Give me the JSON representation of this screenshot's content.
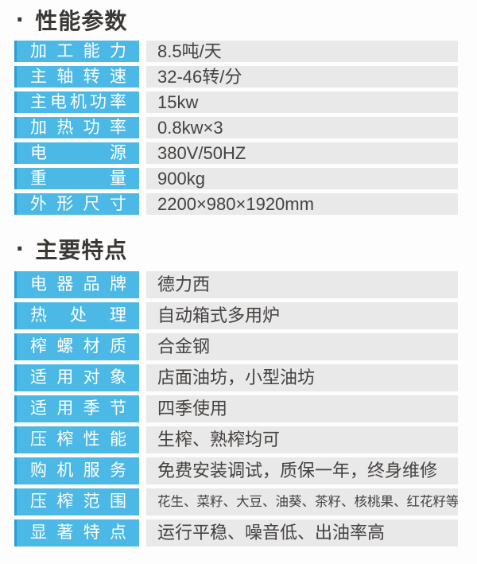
{
  "colors": {
    "accent": "#4cb8e6",
    "accent_dark": "#2aa0d4",
    "value_bg": "#e9e9e9",
    "label_text": "#ffffff",
    "value_text": "#454240",
    "title_text": "#3a3734"
  },
  "bullet": "·",
  "sections": [
    {
      "title": "性能参数",
      "rows": [
        {
          "label": "加工能力",
          "value": "8.5吨/天"
        },
        {
          "label": "主轴转速",
          "value": "32-46转/分"
        },
        {
          "label": "主电机功率",
          "value": "15kw"
        },
        {
          "label": "加热功率",
          "value": "0.8kw×3"
        },
        {
          "label": "电源",
          "value": "380V/50HZ"
        },
        {
          "label": "重量",
          "value": "900kg"
        },
        {
          "label": "外形尺寸",
          "value": "2200×980×1920mm"
        }
      ]
    },
    {
      "title": "主要特点",
      "rows": [
        {
          "label": "电器品牌",
          "value": "德力西"
        },
        {
          "label": "热处理",
          "value": "自动箱式多用炉"
        },
        {
          "label": "榨螺材质",
          "value": "合金钢"
        },
        {
          "label": "适用对象",
          "value": "店面油坊，小型油坊"
        },
        {
          "label": "适用季节",
          "value": "四季使用"
        },
        {
          "label": "压榨性能",
          "value": "生榨、熟榨均可"
        },
        {
          "label": "购机服务",
          "value": "免费安装调试，质保一年，终身维修"
        },
        {
          "label": "压榨范围",
          "value": "花生、菜籽、大豆、油葵、茶籽、核桃果、红花籽等"
        },
        {
          "label": "显著特点",
          "value": "运行平稳、噪音低、出油率高"
        }
      ]
    }
  ]
}
